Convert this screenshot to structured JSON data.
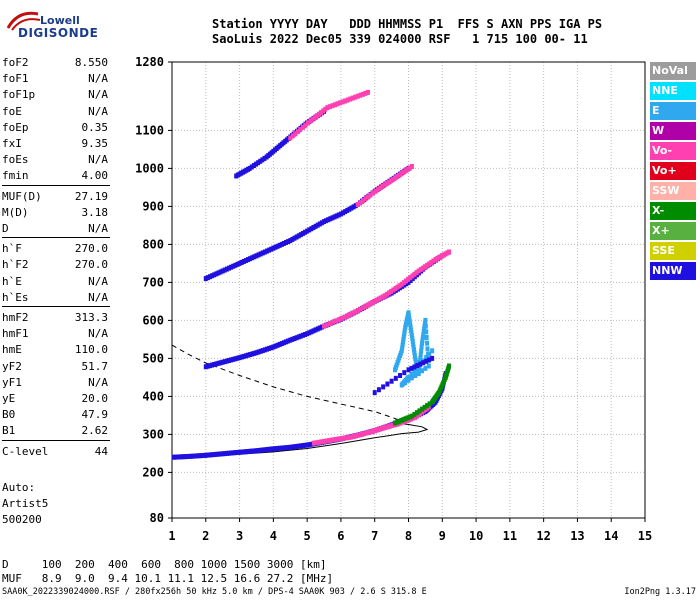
{
  "logo": {
    "line1": "Lowell",
    "line2": "DIGISONDE"
  },
  "header": {
    "line1": "Station YYYY DAY   DDD HHMMSS P1  FFS S AXN PPS IGA PS",
    "line2": "SaoLuis 2022 Dec05 339 024000 RSF   1 715 100 00- 11"
  },
  "params": [
    {
      "name": "foF2",
      "value": "8.550"
    },
    {
      "name": "foF1",
      "value": "N/A"
    },
    {
      "name": "foF1p",
      "value": "N/A"
    },
    {
      "name": "foE",
      "value": "N/A"
    },
    {
      "name": "foEp",
      "value": "0.35"
    },
    {
      "name": "fxI",
      "value": "9.35"
    },
    {
      "name": "foEs",
      "value": "N/A"
    },
    {
      "name": "fmin",
      "value": "4.00"
    },
    {
      "name": "MUF(D)",
      "value": "27.19"
    },
    {
      "name": "M(D)",
      "value": "3.18"
    },
    {
      "name": "D",
      "value": "N/A"
    },
    {
      "name": "h`F",
      "value": "270.0"
    },
    {
      "name": "h`F2",
      "value": "270.0"
    },
    {
      "name": "h`E",
      "value": "N/A"
    },
    {
      "name": "h`Es",
      "value": "N/A"
    },
    {
      "name": "hmF2",
      "value": "313.3"
    },
    {
      "name": "hmF1",
      "value": "N/A"
    },
    {
      "name": "hmE",
      "value": "110.0"
    },
    {
      "name": "yF2",
      "value": "51.7"
    },
    {
      "name": "yF1",
      "value": "N/A"
    },
    {
      "name": "yE",
      "value": "20.0"
    },
    {
      "name": "B0",
      "value": "47.9"
    },
    {
      "name": "B1",
      "value": "2.62"
    },
    {
      "name": "C-level",
      "value": "44"
    }
  ],
  "auto": {
    "line1": "Auto:",
    "line2": "Artist5",
    "line3": "500200"
  },
  "legend": [
    {
      "label": "NoVal",
      "color": "#9c9c9c"
    },
    {
      "label": "NNE",
      "color": "#00e0ff"
    },
    {
      "label": "E",
      "color": "#30a8f0"
    },
    {
      "label": "W",
      "color": "#b000a8"
    },
    {
      "label": "Vo-",
      "color": "#ff40b0"
    },
    {
      "label": "Vo+",
      "color": "#e0001c"
    },
    {
      "label": "SSW",
      "color": "#ffb0a8"
    },
    {
      "label": "X-",
      "color": "#008c00"
    },
    {
      "label": "X+",
      "color": "#58b040"
    },
    {
      "label": "SSE",
      "color": "#d0d000"
    },
    {
      "label": "NNW",
      "color": "#2010e0"
    }
  ],
  "muf_table": {
    "line1": "D     100  200  400  600  800 1000 1500 3000 [km]",
    "line2": "MUF   8.9  9.0  9.4 10.1 11.1 12.5 16.6 27.2 [MHz]"
  },
  "footer": {
    "left": "SAA0K_2022339024000.RSF / 280fx256h 50 kHz 5.0 km / DPS-4 SAA0K 903 / 2.6 S 315.8 E",
    "right": "Ion2Png 1.3.17"
  },
  "chart_data": {
    "type": "scatter",
    "xlabel": "",
    "ylabel": "",
    "xlim": [
      1,
      15
    ],
    "ylim": [
      80,
      1280
    ],
    "xticks": [
      1,
      2,
      3,
      4,
      5,
      6,
      7,
      8,
      9,
      10,
      11,
      12,
      13,
      14,
      15
    ],
    "yticks": [
      80,
      200,
      300,
      400,
      500,
      600,
      700,
      800,
      900,
      1000,
      1100,
      1280
    ],
    "grid": true,
    "series": [
      {
        "color": "#2010e0",
        "points": [
          [
            1.05,
            240
          ],
          [
            1.5,
            242
          ],
          [
            2.0,
            245
          ],
          [
            2.5,
            249
          ],
          [
            3.0,
            253
          ],
          [
            3.5,
            257
          ],
          [
            4.0,
            262
          ],
          [
            4.5,
            266
          ],
          [
            5.0,
            272
          ],
          [
            5.5,
            280
          ],
          [
            6.0,
            288
          ],
          [
            6.5,
            298
          ],
          [
            7.0,
            310
          ],
          [
            7.5,
            325
          ],
          [
            8.0,
            338
          ],
          [
            8.5,
            360
          ],
          [
            8.8,
            385
          ],
          [
            9.0,
            420
          ],
          [
            9.1,
            460
          ]
        ]
      },
      {
        "color": "#ff40b0",
        "points": [
          [
            5.2,
            277
          ],
          [
            5.8,
            286
          ],
          [
            6.3,
            293
          ],
          [
            6.9,
            307
          ],
          [
            7.3,
            318
          ],
          [
            7.7,
            328
          ],
          [
            8.2,
            345
          ],
          [
            8.6,
            372
          ]
        ]
      },
      {
        "color": "#008c00",
        "points": [
          [
            7.6,
            330
          ],
          [
            8.1,
            348
          ],
          [
            8.7,
            385
          ],
          [
            8.9,
            410
          ],
          [
            9.1,
            450
          ],
          [
            9.2,
            480
          ]
        ]
      },
      {
        "color": "#2010e0",
        "points": [
          [
            2.0,
            478
          ],
          [
            2.5,
            490
          ],
          [
            3.0,
            502
          ],
          [
            3.5,
            515
          ],
          [
            4.0,
            530
          ],
          [
            4.5,
            548
          ],
          [
            5.0,
            565
          ],
          [
            5.5,
            585
          ],
          [
            6.0,
            603
          ],
          [
            6.5,
            625
          ],
          [
            7.0,
            650
          ],
          [
            7.5,
            672
          ],
          [
            8.0,
            700
          ],
          [
            8.5,
            740
          ],
          [
            9.0,
            770
          ]
        ]
      },
      {
        "color": "#ff40b0",
        "points": [
          [
            5.5,
            585
          ],
          [
            6.2,
            612
          ],
          [
            6.8,
            640
          ],
          [
            7.3,
            665
          ],
          [
            7.8,
            695
          ],
          [
            8.3,
            730
          ],
          [
            8.8,
            760
          ],
          [
            9.2,
            780
          ]
        ]
      },
      {
        "color": "#2010e0",
        "points": [
          [
            2.0,
            710
          ],
          [
            2.5,
            730
          ],
          [
            3.0,
            750
          ],
          [
            3.5,
            770
          ],
          [
            4.0,
            790
          ],
          [
            4.5,
            810
          ],
          [
            5.0,
            835
          ],
          [
            5.5,
            860
          ],
          [
            6.0,
            880
          ],
          [
            6.5,
            905
          ],
          [
            7.0,
            940
          ],
          [
            7.5,
            970
          ],
          [
            8.0,
            1000
          ]
        ]
      },
      {
        "color": "#ff40b0",
        "points": [
          [
            6.5,
            905
          ],
          [
            7.1,
            945
          ],
          [
            7.6,
            975
          ],
          [
            8.1,
            1005
          ]
        ]
      },
      {
        "color": "#2010e0",
        "points": [
          [
            2.9,
            980
          ],
          [
            3.3,
            1000
          ],
          [
            3.8,
            1030
          ],
          [
            4.2,
            1060
          ],
          [
            4.6,
            1090
          ],
          [
            5.0,
            1120
          ],
          [
            5.5,
            1150
          ]
        ]
      },
      {
        "color": "#ff40b0",
        "points": [
          [
            4.5,
            1080
          ],
          [
            5.1,
            1125
          ],
          [
            5.6,
            1160
          ],
          [
            6.2,
            1180
          ],
          [
            6.8,
            1200
          ]
        ]
      },
      {
        "color": "#30a8f0",
        "points": [
          [
            7.6,
            470
          ],
          [
            7.8,
            520
          ],
          [
            7.9,
            580
          ],
          [
            8.0,
            620
          ],
          [
            8.1,
            560
          ],
          [
            8.2,
            500
          ],
          [
            8.3,
            460
          ],
          [
            8.4,
            540
          ],
          [
            8.5,
            600
          ],
          [
            8.6,
            480
          ],
          [
            7.8,
            430
          ],
          [
            8.0,
            450
          ],
          [
            8.7,
            520
          ]
        ]
      },
      {
        "color": "#2010e0",
        "points": [
          [
            7.0,
            410
          ],
          [
            8.0,
            470
          ],
          [
            8.7,
            500
          ]
        ]
      }
    ],
    "profile": {
      "solid": [
        [
          1.05,
          242
        ],
        [
          2,
          244
        ],
        [
          3,
          248
        ],
        [
          4,
          254
        ],
        [
          5,
          263
        ],
        [
          6,
          276
        ],
        [
          7,
          291
        ],
        [
          7.8,
          302
        ],
        [
          8.3,
          306
        ],
        [
          8.55,
          313
        ],
        [
          8.4,
          320
        ],
        [
          8.0,
          326
        ],
        [
          7.5,
          332
        ]
      ],
      "dashed": [
        [
          1.0,
          535
        ],
        [
          1.5,
          510
        ],
        [
          2.0,
          488
        ],
        [
          3.0,
          455
        ],
        [
          4.0,
          425
        ],
        [
          5.0,
          400
        ],
        [
          6.0,
          380
        ],
        [
          7.0,
          360
        ],
        [
          7.5,
          345
        ],
        [
          7.8,
          335
        ]
      ]
    }
  }
}
